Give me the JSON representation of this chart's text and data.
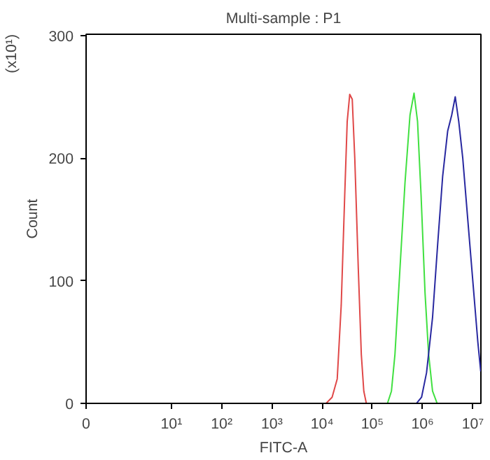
{
  "chart_data": {
    "type": "line",
    "title": "Multi-sample : P1",
    "xlabel": "FITC-A",
    "ylabel": "Count",
    "annotations": [
      "(x10¹)"
    ],
    "log": "x",
    "xlim": [
      0.2,
      14500000
    ],
    "ylim": [
      0,
      301
    ],
    "xticks": [
      {
        "value": 0.2,
        "label": "0"
      },
      {
        "value": 10,
        "label": "10¹"
      },
      {
        "value": 100,
        "label": "10²"
      },
      {
        "value": 1000,
        "label": "10³"
      },
      {
        "value": 10000,
        "label": "10⁴"
      },
      {
        "value": 100000,
        "label": "10⁵"
      },
      {
        "value": 1000000,
        "label": "10⁶"
      },
      {
        "value": 10000000,
        "label": "10⁷"
      }
    ],
    "yticks": [
      0,
      100,
      200,
      300
    ],
    "grid": false,
    "marker": "none",
    "line_style": "solid",
    "series": [
      {
        "color": "#e04848",
        "x": [
          12000,
          15800,
          20000,
          24000,
          28200,
          31600,
          35500,
          39800,
          44700,
          52500,
          60300,
          67600,
          75900
        ],
        "values": [
          0,
          5,
          20,
          80,
          170,
          230,
          252,
          248,
          200,
          110,
          40,
          10,
          0
        ]
      },
      {
        "color": "#40e040",
        "x": [
          200000,
          240000,
          282000,
          355000,
          447000,
          562000,
          676000,
          794000,
          933000,
          1120000,
          1320000,
          1580000,
          1950000
        ],
        "values": [
          0,
          10,
          40,
          110,
          180,
          235,
          253,
          230,
          170,
          90,
          40,
          10,
          0
        ]
      },
      {
        "color": "#2828a0",
        "x": [
          759000,
          955000,
          1200000,
          1580000,
          2000000,
          2510000,
          3160000,
          3800000,
          4470000,
          5250000,
          6310000,
          7940000,
          10000000,
          12600000,
          14400000
        ],
        "values": [
          0,
          5,
          25,
          70,
          130,
          185,
          222,
          235,
          250,
          230,
          200,
          150,
          100,
          50,
          26
        ]
      }
    ]
  }
}
